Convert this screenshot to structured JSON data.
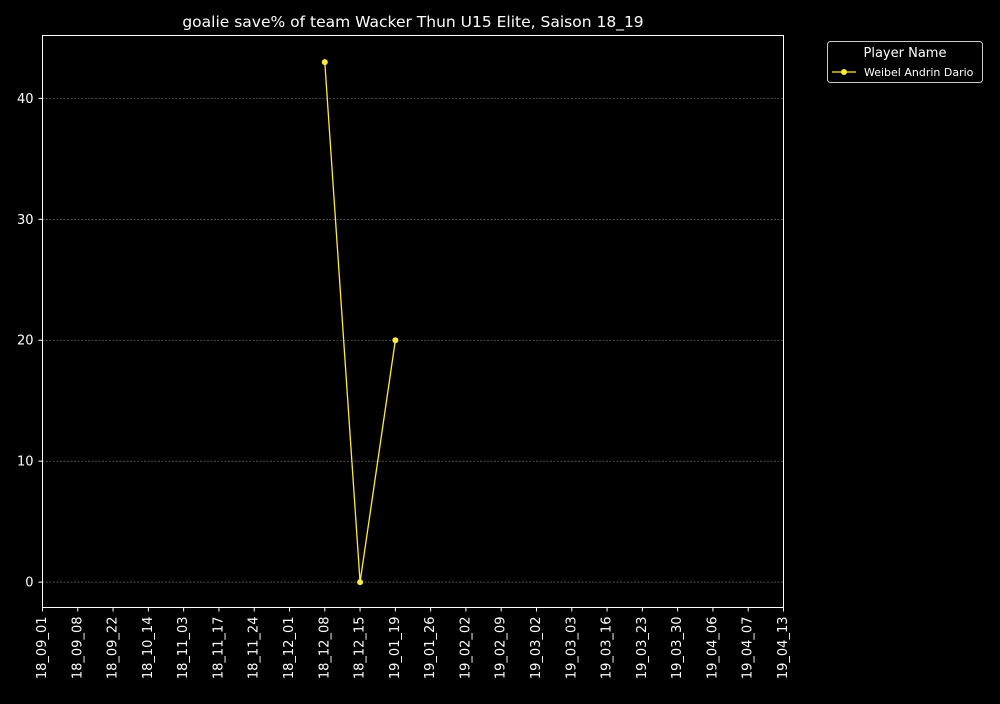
{
  "chart_data": {
    "type": "line",
    "title": "goalie save% of team Wacker Thun U15 Elite, Saison 18_19",
    "xlabel": "",
    "ylabel": "",
    "categories": [
      "18_09_01",
      "18_09_08",
      "18_09_22",
      "18_10_14",
      "18_11_03",
      "18_11_17",
      "18_11_24",
      "18_12_01",
      "18_12_08",
      "18_12_15",
      "19_01_19",
      "19_01_26",
      "19_02_02",
      "19_02_09",
      "19_03_02",
      "19_03_03",
      "19_03_16",
      "19_03_23",
      "19_03_30",
      "19_04_06",
      "19_04_07",
      "19_04_13"
    ],
    "y_ticks": [
      0,
      10,
      20,
      30,
      40
    ],
    "ylim": [
      -2.1,
      45.2
    ],
    "grid": true,
    "legend": {
      "title": "Player Name",
      "placement": "outside-top-right"
    },
    "series": [
      {
        "name": "Weibel Andrin Dario",
        "color": "#ffeb3b",
        "points": [
          {
            "x": "18_12_08",
            "y": 43
          },
          {
            "x": "18_12_15",
            "y": 0
          },
          {
            "x": "19_01_19",
            "y": 20
          }
        ]
      }
    ]
  },
  "colors": {
    "background": "#000000",
    "foreground": "#ffffff",
    "grid": "#808080"
  }
}
